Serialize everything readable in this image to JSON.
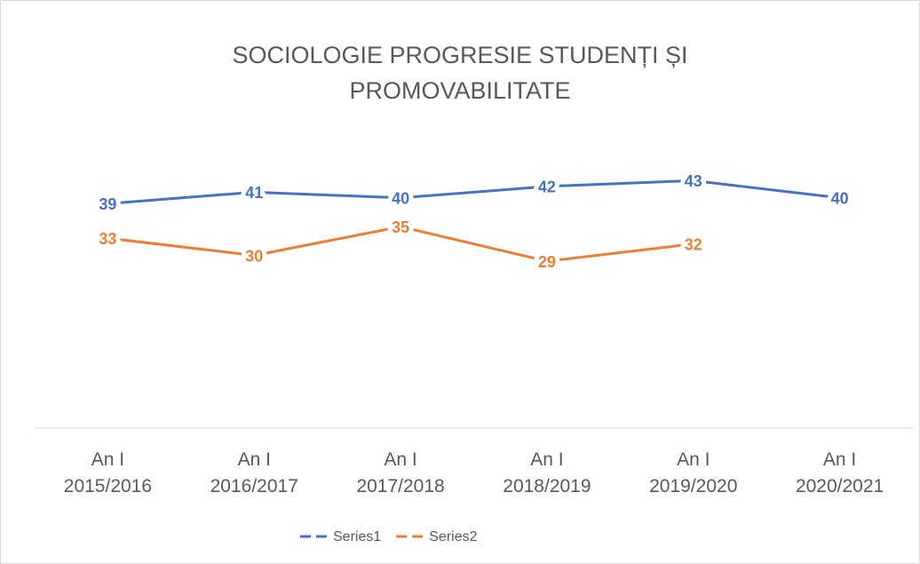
{
  "chart_data": {
    "type": "line",
    "title": "SOCIOLOGIE PROGRESIE STUDENȚI ȘI PROMOVABILITATE",
    "categories": [
      "An I\n2015/2016",
      "An I\n2016/2017",
      "An I\n2017/2018",
      "An I\n2018/2019",
      "An I\n2019/2020",
      "An I\n2020/2021"
    ],
    "series": [
      {
        "name": "Series1",
        "color": "#4472c4",
        "values": [
          39,
          41,
          40,
          42,
          43,
          40
        ]
      },
      {
        "name": "Series2",
        "color": "#ed7d31",
        "values": [
          33,
          30,
          35,
          29,
          32,
          null
        ]
      }
    ],
    "ylim": [
      0,
      50
    ],
    "grid": false,
    "legend": "bottom"
  }
}
